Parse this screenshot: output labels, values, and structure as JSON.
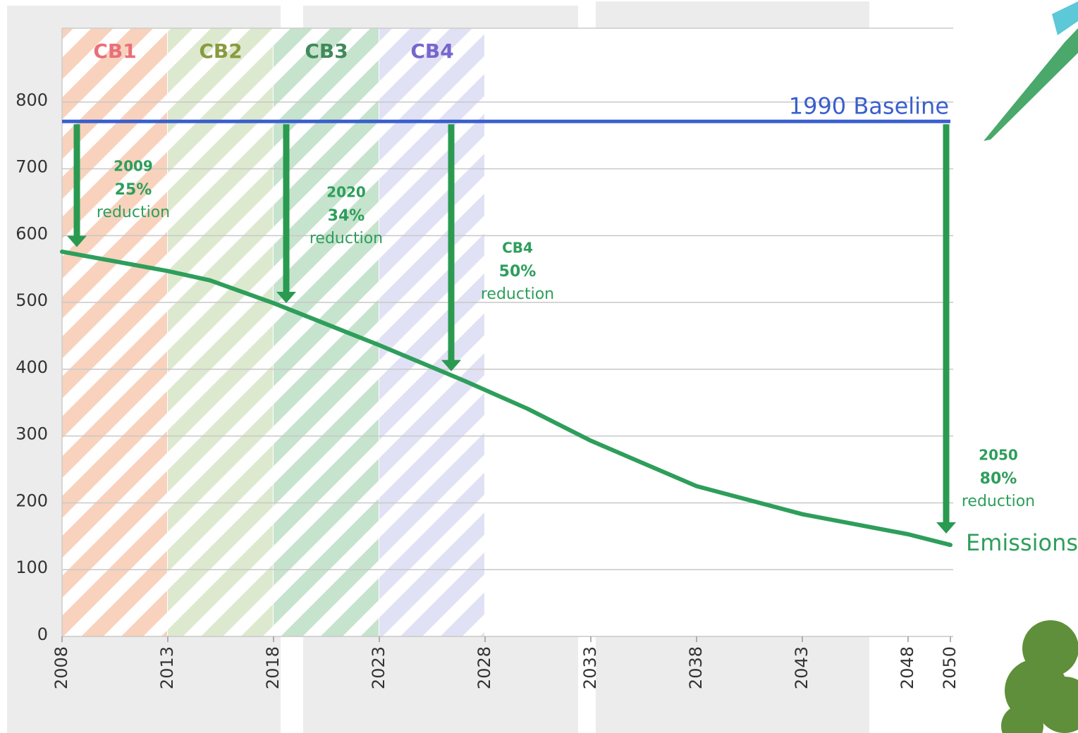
{
  "chart_data": {
    "type": "line",
    "x": [
      2008,
      2013,
      2015,
      2018,
      2023,
      2027,
      2030,
      2033,
      2038,
      2043,
      2048,
      2050
    ],
    "series": [
      {
        "name": "Emissions",
        "color": "#2e9e5b",
        "values": [
          576,
          547,
          533,
          499,
          436,
          383,
          341,
          293,
          225,
          183,
          153,
          137
        ]
      }
    ],
    "baseline": {
      "label": "1990 Baseline",
      "value": 771,
      "color": "#3a5fcd"
    },
    "periods": [
      {
        "label": "CB1",
        "start": 2008,
        "end": 2013,
        "color": "#f6c7ad",
        "label_color": "#e8707a"
      },
      {
        "label": "CB2",
        "start": 2013,
        "end": 2018,
        "color": "#d5e3c3",
        "label_color": "#8a9a40"
      },
      {
        "label": "CB3",
        "start": 2018,
        "end": 2023,
        "color": "#b8dcc0",
        "label_color": "#3f8a5a"
      },
      {
        "label": "CB4",
        "start": 2023,
        "end": 2028,
        "color": "#d9d9f2",
        "label_color": "#7766cc"
      }
    ],
    "annotations": [
      {
        "lines": [
          "2009",
          "25%",
          "reduction"
        ],
        "x": 2008.7,
        "y_from": 771,
        "y_to": 583
      },
      {
        "lines": [
          "2020",
          "34%",
          "reduction"
        ],
        "x": 2018.6,
        "y_from": 771,
        "y_to": 499
      },
      {
        "lines": [
          "CB4",
          "50%",
          "reduction"
        ],
        "x": 2026.4,
        "y_from": 771,
        "y_to": 397
      },
      {
        "lines": [
          "2050",
          "80%",
          "reduction"
        ],
        "x": 2049.8,
        "y_from": 771,
        "y_to": 154
      }
    ],
    "xlim": [
      2008,
      2050
    ],
    "xticks": [
      2008,
      2013,
      2018,
      2023,
      2028,
      2033,
      2038,
      2043,
      2048,
      2050
    ],
    "ylim": [
      0,
      900
    ],
    "yticks": [
      0,
      100,
      200,
      300,
      400,
      500,
      600,
      700,
      800
    ],
    "grid": true
  }
}
